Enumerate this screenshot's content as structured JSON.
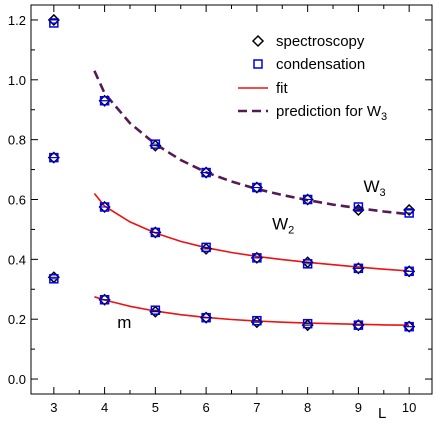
{
  "chart_data": {
    "type": "scatter",
    "xlabel": "L",
    "ylabel": "",
    "xlim": [
      2.55,
      10.45
    ],
    "ylim": [
      -0.05,
      1.25
    ],
    "x_ticks": [
      3,
      4,
      5,
      6,
      7,
      8,
      9,
      10
    ],
    "y_ticks": [
      0.0,
      0.2,
      0.4,
      0.6,
      0.8,
      1.0,
      1.2
    ],
    "y_tick_labels": [
      "0.0",
      "0.2",
      "0.4",
      "0.6",
      "0.8",
      "1.0",
      "1.2"
    ],
    "grid": false,
    "legend_position": "top-right",
    "legend": [
      {
        "label": "spectroscopy",
        "marker": "diamond",
        "color": "#000000"
      },
      {
        "label": "condensation",
        "marker": "square",
        "color": "#0000ee"
      },
      {
        "label": "fit",
        "line": "solid",
        "color": "#ee1111"
      },
      {
        "label": "prediction for W",
        "label_sub": "3",
        "line": "dashed",
        "color": "#551a55"
      }
    ],
    "annotations": [
      {
        "text": "m",
        "sub": "",
        "x": 4.25,
        "y": 0.17
      },
      {
        "text": "W",
        "sub": "2",
        "x": 7.3,
        "y": 0.5
      },
      {
        "text": "W",
        "sub": "3",
        "x": 9.1,
        "y": 0.625
      }
    ],
    "series": [
      {
        "name": "spectroscopy",
        "marker": "diamond",
        "color": "#000000",
        "points": [
          [
            3,
            0.34
          ],
          [
            3,
            0.74
          ],
          [
            3,
            1.2
          ],
          [
            4,
            0.265
          ],
          [
            4,
            0.575
          ],
          [
            4,
            0.93
          ],
          [
            5,
            0.225
          ],
          [
            5,
            0.49
          ],
          [
            5,
            0.78
          ],
          [
            6,
            0.205
          ],
          [
            6,
            0.435
          ],
          [
            6,
            0.69
          ],
          [
            7,
            0.19
          ],
          [
            7,
            0.405
          ],
          [
            7,
            0.64
          ],
          [
            8,
            0.18
          ],
          [
            8,
            0.39
          ],
          [
            8,
            0.6
          ],
          [
            9,
            0.18
          ],
          [
            9,
            0.37
          ],
          [
            9,
            0.565
          ],
          [
            10,
            0.175
          ],
          [
            10,
            0.36
          ],
          [
            10,
            0.565
          ]
        ]
      },
      {
        "name": "condensation",
        "marker": "square",
        "color": "#0000ee",
        "points": [
          [
            3,
            0.335
          ],
          [
            3,
            0.74
          ],
          [
            3,
            1.19
          ],
          [
            4,
            0.265
          ],
          [
            4,
            0.575
          ],
          [
            4,
            0.93
          ],
          [
            5,
            0.23
          ],
          [
            5,
            0.49
          ],
          [
            5,
            0.785
          ],
          [
            6,
            0.205
          ],
          [
            6,
            0.44
          ],
          [
            6,
            0.69
          ],
          [
            7,
            0.195
          ],
          [
            7,
            0.405
          ],
          [
            7,
            0.64
          ],
          [
            8,
            0.185
          ],
          [
            8,
            0.385
          ],
          [
            8,
            0.6
          ],
          [
            9,
            0.18
          ],
          [
            9,
            0.37
          ],
          [
            9,
            0.575
          ],
          [
            10,
            0.175
          ],
          [
            10,
            0.36
          ],
          [
            10,
            0.555
          ]
        ]
      },
      {
        "name": "fit",
        "line": "solid",
        "color": "#ee1111",
        "curves": [
          {
            "x": [
              3.8,
              4,
              4.5,
              5,
              5.5,
              6,
              6.5,
              7,
              7.5,
              8,
              8.5,
              9,
              9.5,
              10
            ],
            "y": [
              0.275,
              0.264,
              0.243,
              0.227,
              0.215,
              0.206,
              0.199,
              0.194,
              0.19,
              0.187,
              0.185,
              0.183,
              0.181,
              0.18
            ]
          },
          {
            "x": [
              3.8,
              4,
              4.5,
              5,
              5.5,
              6,
              6.5,
              7,
              7.5,
              8,
              8.5,
              9,
              9.5,
              10
            ],
            "y": [
              0.62,
              0.578,
              0.525,
              0.488,
              0.46,
              0.439,
              0.423,
              0.41,
              0.399,
              0.39,
              0.382,
              0.374,
              0.367,
              0.361
            ]
          }
        ]
      },
      {
        "name": "prediction for W3",
        "line": "dashed",
        "color": "#551a55",
        "curves": [
          {
            "x": [
              3.8,
              4,
              4.5,
              5,
              5.5,
              6,
              6.5,
              7,
              7.5,
              8,
              8.5,
              9,
              9.5,
              10
            ],
            "y": [
              1.03,
              0.955,
              0.855,
              0.785,
              0.732,
              0.691,
              0.66,
              0.635,
              0.615,
              0.598,
              0.583,
              0.571,
              0.56,
              0.551
            ]
          }
        ]
      }
    ]
  }
}
